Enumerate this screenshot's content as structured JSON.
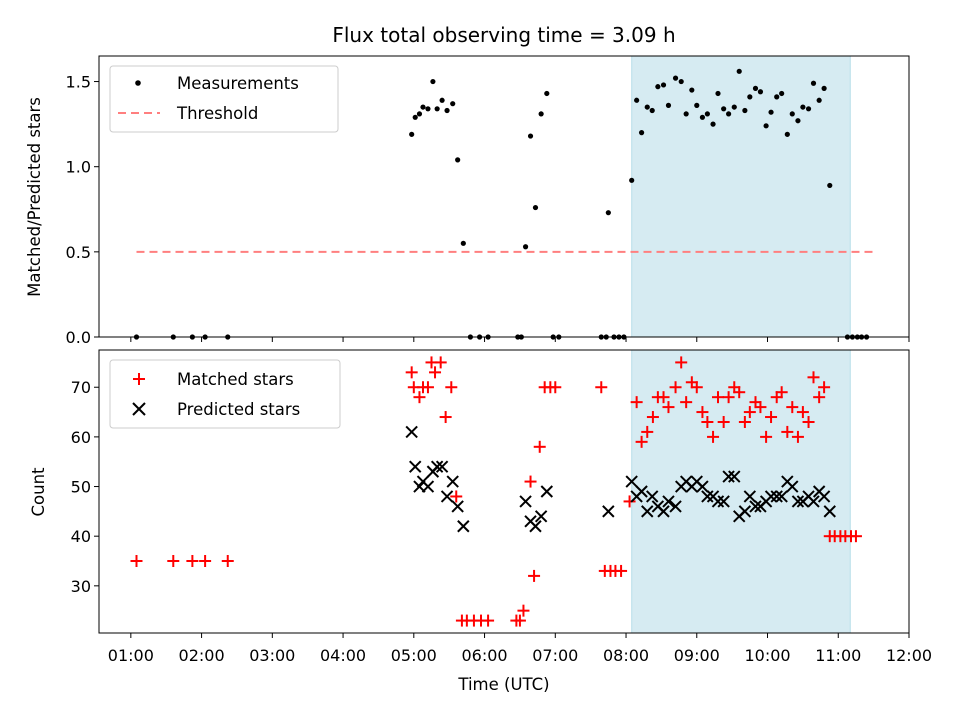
{
  "chart_data": [
    {
      "type": "scatter",
      "title": "Flux total observing time = 3.09 h",
      "xlabel": "",
      "ylabel": "Matched/Predicted stars",
      "xlim": [
        0.55,
        12.0
      ],
      "ylim": [
        0.0,
        1.65
      ],
      "yticks": [
        "0.0",
        "0.5",
        "1.0",
        "1.5"
      ],
      "ytick_values": [
        0.0,
        0.5,
        1.0,
        1.5
      ],
      "shaded_span": [
        8.08,
        11.17
      ],
      "legend": {
        "placement": "upper-left",
        "entries": [
          "Measurements",
          "Threshold"
        ]
      },
      "series": [
        {
          "name": "Measurements",
          "marker": "dot",
          "color": "#000000",
          "points": [
            [
              1.08,
              0.0
            ],
            [
              1.6,
              0.0
            ],
            [
              1.87,
              0.0
            ],
            [
              2.05,
              0.0
            ],
            [
              2.37,
              0.0
            ],
            [
              4.97,
              1.19
            ],
            [
              5.02,
              1.29
            ],
            [
              5.08,
              1.31
            ],
            [
              5.13,
              1.35
            ],
            [
              5.2,
              1.34
            ],
            [
              5.27,
              1.5
            ],
            [
              5.33,
              1.34
            ],
            [
              5.4,
              1.39
            ],
            [
              5.47,
              1.33
            ],
            [
              5.55,
              1.37
            ],
            [
              5.62,
              1.04
            ],
            [
              5.7,
              0.55
            ],
            [
              5.8,
              0.0
            ],
            [
              5.93,
              0.0
            ],
            [
              6.05,
              0.0
            ],
            [
              6.47,
              0.0
            ],
            [
              6.52,
              0.0
            ],
            [
              6.58,
              0.53
            ],
            [
              6.65,
              1.18
            ],
            [
              6.72,
              0.76
            ],
            [
              6.8,
              1.31
            ],
            [
              6.88,
              1.43
            ],
            [
              6.97,
              0.0
            ],
            [
              7.05,
              0.0
            ],
            [
              7.65,
              0.0
            ],
            [
              7.72,
              0.0
            ],
            [
              7.75,
              0.73
            ],
            [
              7.83,
              0.0
            ],
            [
              7.9,
              0.0
            ],
            [
              7.97,
              0.0
            ],
            [
              8.08,
              0.92
            ],
            [
              8.15,
              1.39
            ],
            [
              8.22,
              1.2
            ],
            [
              8.3,
              1.35
            ],
            [
              8.37,
              1.33
            ],
            [
              8.45,
              1.47
            ],
            [
              8.53,
              1.48
            ],
            [
              8.6,
              1.36
            ],
            [
              8.7,
              1.52
            ],
            [
              8.78,
              1.5
            ],
            [
              8.85,
              1.31
            ],
            [
              8.93,
              1.45
            ],
            [
              9.0,
              1.36
            ],
            [
              9.08,
              1.29
            ],
            [
              9.15,
              1.31
            ],
            [
              9.23,
              1.25
            ],
            [
              9.3,
              1.43
            ],
            [
              9.38,
              1.34
            ],
            [
              9.45,
              1.31
            ],
            [
              9.53,
              1.35
            ],
            [
              9.6,
              1.56
            ],
            [
              9.68,
              1.33
            ],
            [
              9.75,
              1.41
            ],
            [
              9.83,
              1.46
            ],
            [
              9.9,
              1.44
            ],
            [
              9.98,
              1.24
            ],
            [
              10.05,
              1.32
            ],
            [
              10.13,
              1.41
            ],
            [
              10.2,
              1.43
            ],
            [
              10.28,
              1.19
            ],
            [
              10.35,
              1.31
            ],
            [
              10.43,
              1.27
            ],
            [
              10.5,
              1.35
            ],
            [
              10.58,
              1.34
            ],
            [
              10.65,
              1.49
            ],
            [
              10.73,
              1.39
            ],
            [
              10.8,
              1.46
            ],
            [
              10.88,
              0.89
            ],
            [
              11.13,
              0.0
            ],
            [
              11.2,
              0.0
            ],
            [
              11.27,
              0.0
            ],
            [
              11.33,
              0.0
            ],
            [
              11.4,
              0.0
            ]
          ]
        },
        {
          "name": "Threshold",
          "style": "dashed-line",
          "color": "#ff7f7f",
          "x": [
            1.08,
            11.5
          ],
          "y": [
            0.5,
            0.5
          ]
        }
      ]
    },
    {
      "type": "scatter",
      "title": "",
      "xlabel": "Time (UTC)",
      "ylabel": "Count",
      "xlim": [
        0.55,
        12.0
      ],
      "ylim": [
        20.5,
        77.5
      ],
      "yticks": [
        "30",
        "40",
        "50",
        "60",
        "70"
      ],
      "ytick_values": [
        30,
        40,
        50,
        60,
        70
      ],
      "xticks": [
        "01:00",
        "02:00",
        "03:00",
        "04:00",
        "05:00",
        "06:00",
        "07:00",
        "08:00",
        "09:00",
        "10:00",
        "11:00",
        "12:00"
      ],
      "xtick_values": [
        1,
        2,
        3,
        4,
        5,
        6,
        7,
        8,
        9,
        10,
        11,
        12
      ],
      "shaded_span": [
        8.08,
        11.17
      ],
      "legend": {
        "placement": "upper-left",
        "entries": [
          "Matched stars",
          "Predicted stars"
        ]
      },
      "series": [
        {
          "name": "Matched stars",
          "marker": "plus",
          "color": "#ff0000",
          "points": [
            [
              1.08,
              35
            ],
            [
              1.6,
              35
            ],
            [
              1.87,
              35
            ],
            [
              2.05,
              35
            ],
            [
              2.37,
              35
            ],
            [
              4.97,
              73
            ],
            [
              5.0,
              70
            ],
            [
              5.08,
              68
            ],
            [
              5.13,
              70
            ],
            [
              5.2,
              70
            ],
            [
              5.25,
              75
            ],
            [
              5.3,
              73
            ],
            [
              5.38,
              75
            ],
            [
              5.45,
              64
            ],
            [
              5.53,
              70
            ],
            [
              5.6,
              48
            ],
            [
              5.68,
              23
            ],
            [
              5.75,
              23
            ],
            [
              5.85,
              23
            ],
            [
              5.95,
              23
            ],
            [
              6.05,
              23
            ],
            [
              6.45,
              23
            ],
            [
              6.5,
              23
            ],
            [
              6.55,
              25
            ],
            [
              6.65,
              51
            ],
            [
              6.7,
              32
            ],
            [
              6.78,
              58
            ],
            [
              6.85,
              70
            ],
            [
              6.93,
              70
            ],
            [
              7.0,
              70
            ],
            [
              7.65,
              70
            ],
            [
              7.7,
              33
            ],
            [
              7.78,
              33
            ],
            [
              7.85,
              33
            ],
            [
              7.93,
              33
            ],
            [
              8.05,
              47
            ],
            [
              8.15,
              67
            ],
            [
              8.22,
              59
            ],
            [
              8.3,
              61
            ],
            [
              8.38,
              64
            ],
            [
              8.45,
              68
            ],
            [
              8.53,
              68
            ],
            [
              8.6,
              66
            ],
            [
              8.7,
              70
            ],
            [
              8.78,
              75
            ],
            [
              8.85,
              67
            ],
            [
              8.93,
              71
            ],
            [
              9.0,
              70
            ],
            [
              9.08,
              65
            ],
            [
              9.15,
              63
            ],
            [
              9.23,
              60
            ],
            [
              9.3,
              68
            ],
            [
              9.38,
              63
            ],
            [
              9.45,
              68
            ],
            [
              9.53,
              70
            ],
            [
              9.6,
              69
            ],
            [
              9.68,
              63
            ],
            [
              9.75,
              65
            ],
            [
              9.83,
              67
            ],
            [
              9.9,
              66
            ],
            [
              9.98,
              60
            ],
            [
              10.05,
              64
            ],
            [
              10.13,
              68
            ],
            [
              10.2,
              69
            ],
            [
              10.28,
              61
            ],
            [
              10.35,
              66
            ],
            [
              10.43,
              60
            ],
            [
              10.5,
              65
            ],
            [
              10.58,
              63
            ],
            [
              10.65,
              72
            ],
            [
              10.73,
              68
            ],
            [
              10.8,
              70
            ],
            [
              10.88,
              40
            ],
            [
              10.95,
              40
            ],
            [
              11.03,
              40
            ],
            [
              11.1,
              40
            ],
            [
              11.18,
              40
            ],
            [
              11.25,
              40
            ]
          ]
        },
        {
          "name": "Predicted stars",
          "marker": "x",
          "color": "#000000",
          "points": [
            [
              4.97,
              61
            ],
            [
              5.02,
              54
            ],
            [
              5.08,
              50
            ],
            [
              5.13,
              51
            ],
            [
              5.2,
              50
            ],
            [
              5.27,
              53
            ],
            [
              5.33,
              54
            ],
            [
              5.4,
              54
            ],
            [
              5.47,
              48
            ],
            [
              5.55,
              51
            ],
            [
              5.62,
              46
            ],
            [
              5.7,
              42
            ],
            [
              6.58,
              47
            ],
            [
              6.65,
              43
            ],
            [
              6.72,
              42
            ],
            [
              6.8,
              44
            ],
            [
              6.88,
              49
            ],
            [
              7.75,
              45
            ],
            [
              8.08,
              51
            ],
            [
              8.15,
              48
            ],
            [
              8.22,
              49
            ],
            [
              8.3,
              45
            ],
            [
              8.37,
              48
            ],
            [
              8.45,
              46
            ],
            [
              8.53,
              45
            ],
            [
              8.6,
              47
            ],
            [
              8.7,
              46
            ],
            [
              8.78,
              50
            ],
            [
              8.85,
              51
            ],
            [
              8.93,
              50
            ],
            [
              9.0,
              51
            ],
            [
              9.08,
              50
            ],
            [
              9.15,
              48
            ],
            [
              9.23,
              48
            ],
            [
              9.3,
              47
            ],
            [
              9.38,
              47
            ],
            [
              9.45,
              52
            ],
            [
              9.53,
              52
            ],
            [
              9.6,
              44
            ],
            [
              9.68,
              45
            ],
            [
              9.75,
              48
            ],
            [
              9.83,
              46
            ],
            [
              9.9,
              46
            ],
            [
              9.98,
              47
            ],
            [
              10.05,
              48
            ],
            [
              10.13,
              48
            ],
            [
              10.2,
              48
            ],
            [
              10.28,
              51
            ],
            [
              10.35,
              50
            ],
            [
              10.43,
              47
            ],
            [
              10.5,
              47
            ],
            [
              10.58,
              48
            ],
            [
              10.65,
              47
            ],
            [
              10.73,
              49
            ],
            [
              10.8,
              48
            ],
            [
              10.88,
              45
            ]
          ]
        }
      ]
    }
  ]
}
